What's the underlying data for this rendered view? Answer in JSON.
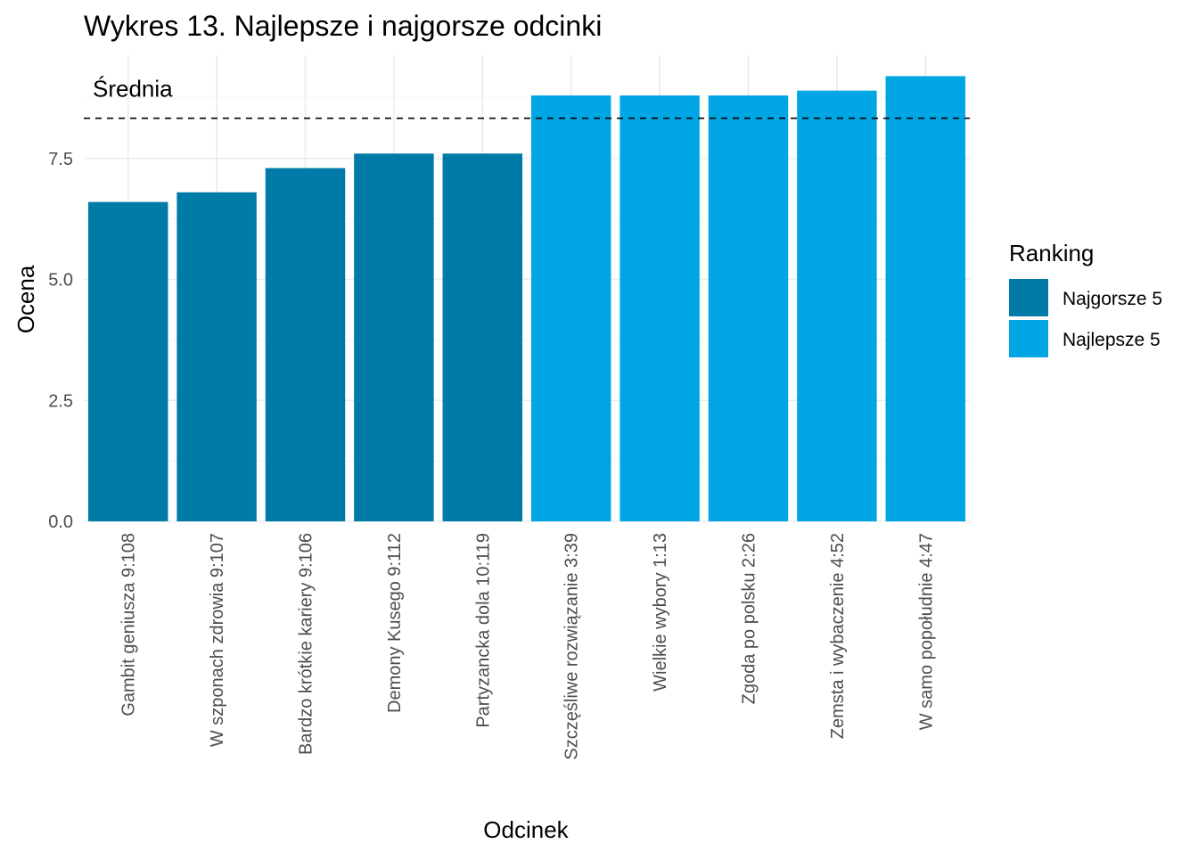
{
  "chart_data": {
    "type": "bar",
    "title": "Wykres 13. Najlepsze i najgorsze odcinki",
    "xlabel": "Odcinek",
    "ylabel": "Ocena",
    "ylim": [
      0,
      9.2
    ],
    "yticks": [
      0,
      2.5,
      5,
      7.5
    ],
    "ytick_labels": [
      "0.0",
      "2.5",
      "5.0",
      "7.5"
    ],
    "grid": true,
    "categories": [
      "Gambit geniusza 9:108",
      "W szponach zdrowia 9:107",
      "Bardzo krótkie kariery 9:106",
      "Demony Kusego 9:112",
      "Partyzancka dola 10:119",
      "Szczęśliwe rozwiązanie 3:39",
      "Wielkie wybory 1:13",
      "Zgoda po polsku 2:26",
      "Zemsta i wybaczenie 4:52",
      "W samo popołudnie 4:47"
    ],
    "values": [
      6.6,
      6.8,
      7.3,
      7.6,
      7.6,
      8.8,
      8.8,
      8.8,
      8.9,
      9.2
    ],
    "groups": [
      "Najgorsze 5",
      "Najgorsze 5",
      "Najgorsze 5",
      "Najgorsze 5",
      "Najgorsze 5",
      "Najlepsze 5",
      "Najlepsze 5",
      "Najlepsze 5",
      "Najlepsze 5",
      "Najlepsze 5"
    ],
    "series": [
      {
        "name": "Najgorsze 5",
        "color": "#007ba7"
      },
      {
        "name": "Najlepsze 5",
        "color": "#00a5e3"
      }
    ],
    "legend": {
      "title": "Ranking",
      "position": "right"
    },
    "reference_line": {
      "label": "Średnia",
      "value": 8.33,
      "style": "dashed"
    }
  }
}
